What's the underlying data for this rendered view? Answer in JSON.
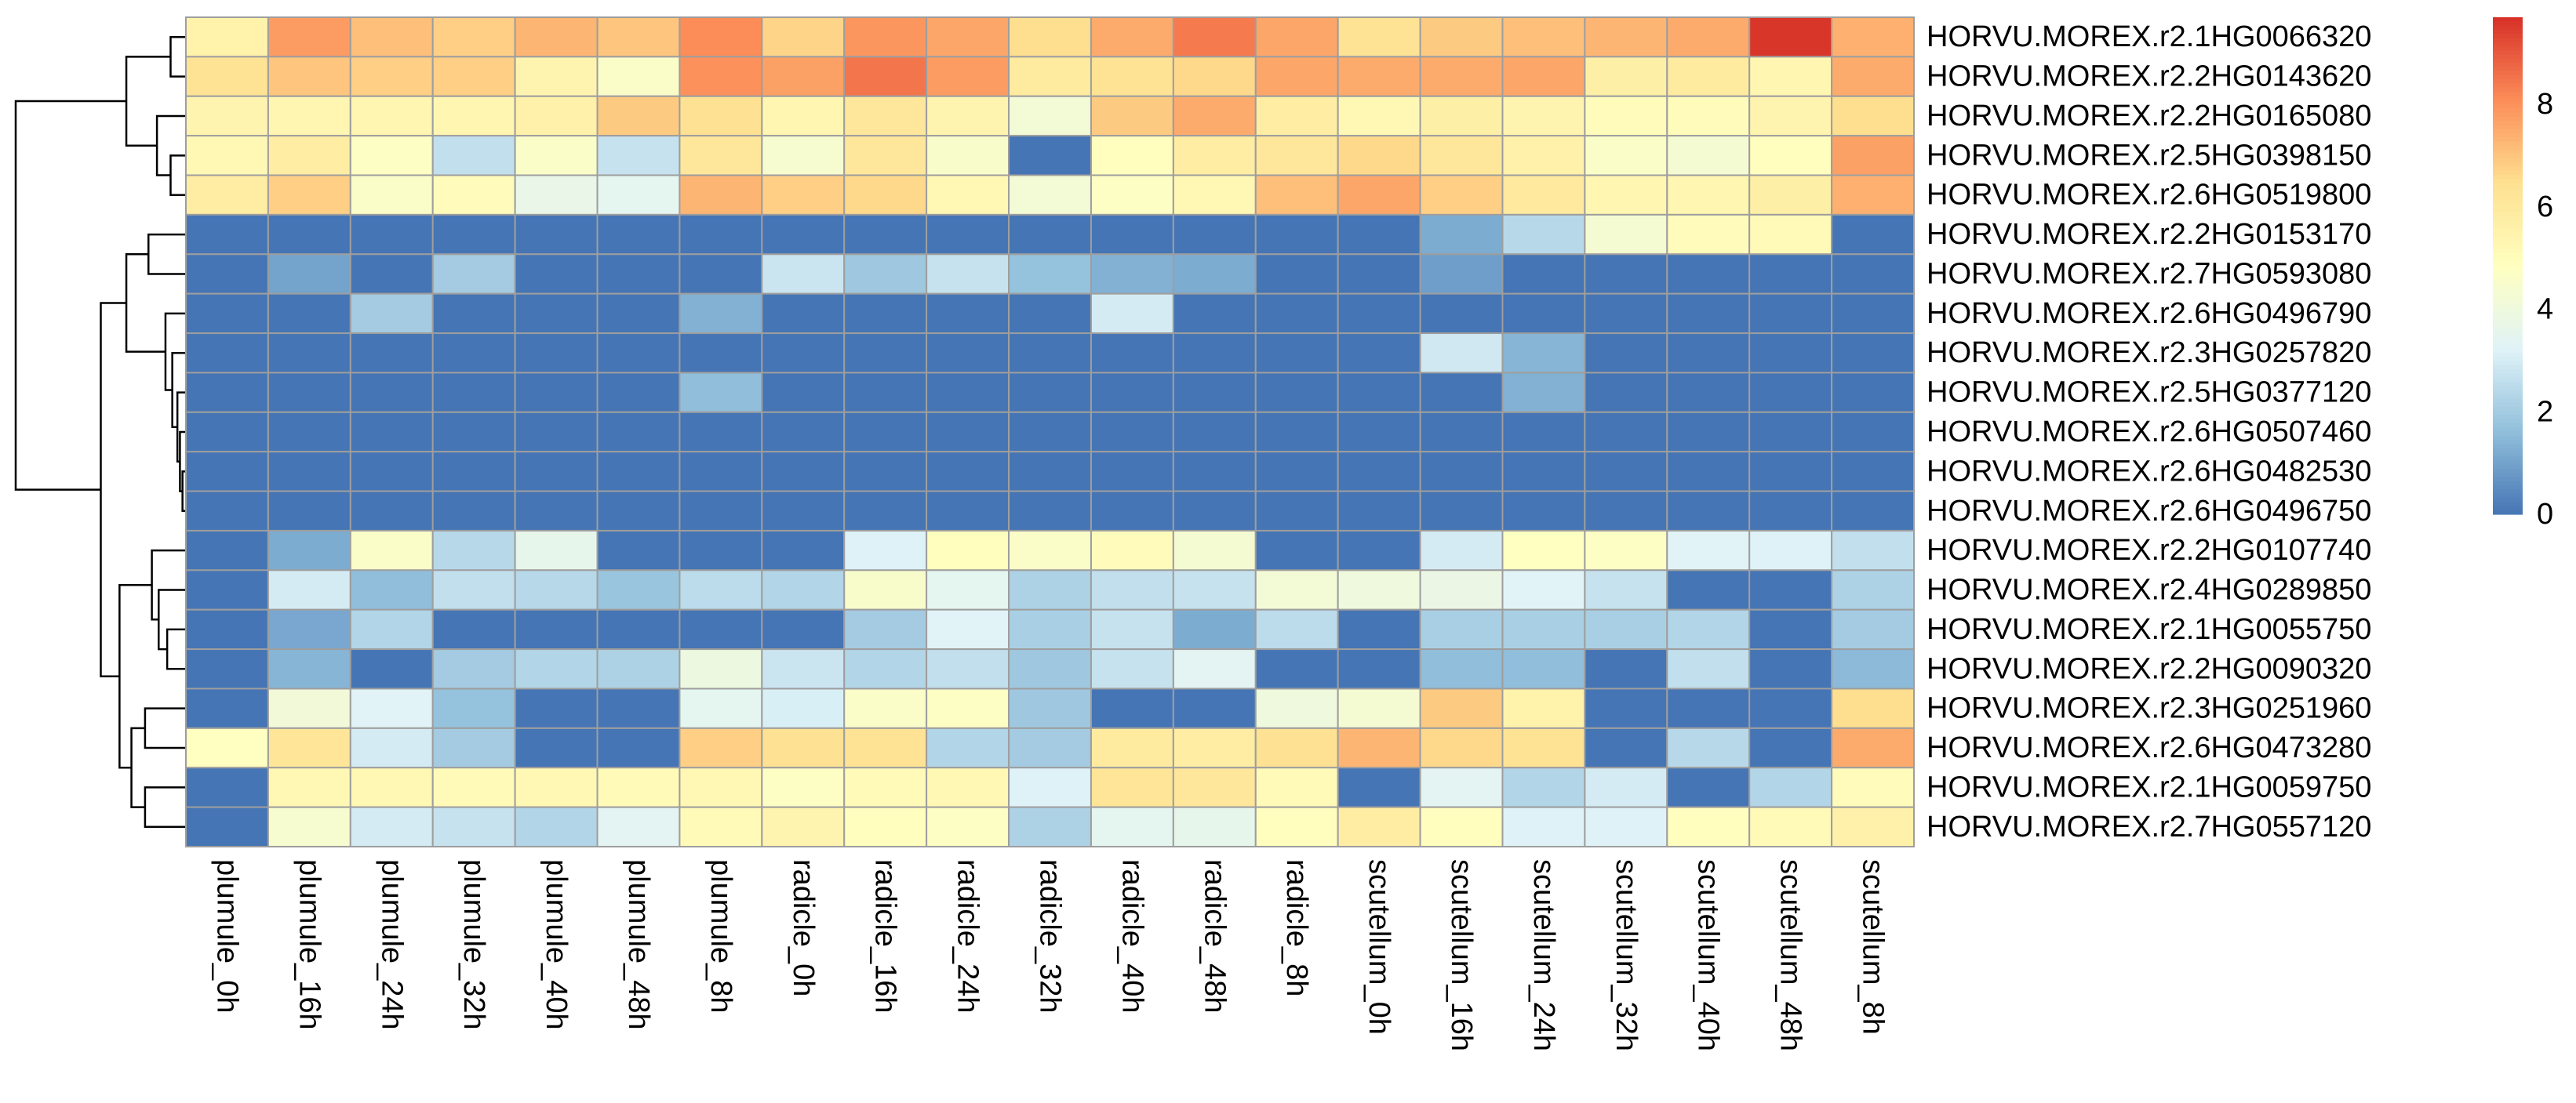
{
  "chart_data": {
    "type": "heatmap",
    "title": "",
    "xlabel": "",
    "ylabel": "",
    "columns": [
      "plumule_0h",
      "plumule_16h",
      "plumule_24h",
      "plumule_32h",
      "plumule_40h",
      "plumule_48h",
      "plumule_8h",
      "radicle_0h",
      "radicle_16h",
      "radicle_24h",
      "radicle_32h",
      "radicle_40h",
      "radicle_48h",
      "radicle_8h",
      "scutellum_0h",
      "scutellum_16h",
      "scutellum_24h",
      "scutellum_32h",
      "scutellum_40h",
      "scutellum_48h",
      "scutellum_8h"
    ],
    "rows": [
      "HORVU.MOREX.r2.1HG0066320",
      "HORVU.MOREX.r2.2HG0143620",
      "HORVU.MOREX.r2.2HG0165080",
      "HORVU.MOREX.r2.5HG0398150",
      "HORVU.MOREX.r2.6HG0519800",
      "HORVU.MOREX.r2.2HG0153170",
      "HORVU.MOREX.r2.7HG0593080",
      "HORVU.MOREX.r2.6HG0496790",
      "HORVU.MOREX.r2.3HG0257820",
      "HORVU.MOREX.r2.5HG0377120",
      "HORVU.MOREX.r2.6HG0507460",
      "HORVU.MOREX.r2.6HG0482530",
      "HORVU.MOREX.r2.6HG0496750",
      "HORVU.MOREX.r2.2HG0107740",
      "HORVU.MOREX.r2.4HG0289850",
      "HORVU.MOREX.r2.1HG0055750",
      "HORVU.MOREX.r2.2HG0090320",
      "HORVU.MOREX.r2.3HG0251960",
      "HORVU.MOREX.r2.6HG0473280",
      "HORVU.MOREX.r2.1HG0059750",
      "HORVU.MOREX.r2.7HG0557120"
    ],
    "values": [
      [
        5.5,
        7.8,
        7.1,
        6.8,
        7.3,
        7.0,
        8.1,
        6.7,
        7.9,
        7.6,
        6.5,
        7.5,
        8.4,
        7.6,
        6.3,
        6.9,
        7.1,
        7.3,
        7.5,
        9.6,
        7.4
      ],
      [
        6.3,
        7.0,
        6.8,
        6.8,
        5.4,
        4.6,
        8.0,
        7.7,
        8.5,
        7.8,
        5.9,
        6.3,
        6.6,
        7.6,
        7.5,
        7.5,
        7.6,
        5.7,
        5.9,
        5.3,
        7.5
      ],
      [
        5.4,
        5.3,
        5.3,
        5.3,
        5.6,
        6.9,
        6.4,
        5.3,
        6.1,
        5.4,
        4.2,
        6.9,
        7.5,
        5.8,
        5.2,
        5.7,
        5.4,
        5.0,
        5.0,
        5.4,
        6.5
      ],
      [
        5.2,
        5.8,
        4.7,
        2.6,
        4.6,
        2.7,
        6.1,
        4.4,
        6.1,
        4.5,
        0.0,
        4.9,
        5.8,
        6.1,
        6.6,
        6.1,
        5.6,
        4.6,
        4.3,
        4.9,
        7.7
      ],
      [
        5.8,
        6.8,
        4.6,
        5.0,
        3.7,
        3.5,
        7.3,
        6.8,
        6.6,
        5.2,
        4.2,
        4.7,
        5.2,
        7.1,
        7.6,
        6.8,
        6.0,
        5.3,
        5.3,
        5.7,
        7.4
      ],
      [
        0.0,
        0.0,
        0.0,
        0.0,
        0.0,
        0.0,
        0.0,
        0.0,
        0.0,
        0.0,
        0.0,
        0.0,
        0.0,
        0.0,
        0.0,
        1.2,
        2.4,
        4.3,
        5.0,
        5.1,
        0.0
      ],
      [
        0.0,
        1.0,
        0.0,
        2.0,
        0.0,
        0.0,
        0.0,
        2.8,
        1.9,
        2.7,
        1.7,
        1.3,
        1.2,
        0.0,
        0.0,
        0.9,
        0.0,
        0.0,
        0.0,
        0.0,
        0.0
      ],
      [
        0.0,
        0.0,
        2.0,
        0.0,
        0.0,
        0.0,
        1.3,
        0.0,
        0.0,
        0.0,
        0.0,
        3.0,
        0.0,
        0.0,
        0.0,
        0.0,
        0.0,
        0.0,
        0.0,
        0.0,
        0.0
      ],
      [
        0.0,
        0.0,
        0.0,
        0.0,
        0.0,
        0.0,
        0.0,
        0.0,
        0.0,
        0.0,
        0.0,
        0.0,
        0.0,
        0.0,
        0.0,
        2.9,
        1.4,
        0.0,
        0.0,
        0.0,
        0.0
      ],
      [
        0.0,
        0.0,
        0.0,
        0.0,
        0.0,
        0.0,
        1.6,
        0.0,
        0.0,
        0.0,
        0.0,
        0.0,
        0.0,
        0.0,
        0.0,
        0.0,
        1.3,
        0.0,
        0.0,
        0.0,
        0.0
      ],
      [
        0.0,
        0.0,
        0.0,
        0.0,
        0.0,
        0.0,
        0.0,
        0.0,
        0.0,
        0.0,
        0.0,
        0.0,
        0.0,
        0.0,
        0.0,
        0.0,
        0.0,
        0.0,
        0.0,
        0.0,
        0.0
      ],
      [
        0.0,
        0.0,
        0.0,
        0.0,
        0.0,
        0.0,
        0.0,
        0.0,
        0.0,
        0.0,
        0.0,
        0.0,
        0.0,
        0.0,
        0.0,
        0.0,
        0.0,
        0.0,
        0.0,
        0.0,
        0.0
      ],
      [
        0.0,
        0.0,
        0.0,
        0.0,
        0.0,
        0.0,
        0.0,
        0.0,
        0.0,
        0.0,
        0.0,
        0.0,
        0.0,
        0.0,
        0.0,
        0.0,
        0.0,
        0.0,
        0.0,
        0.0,
        0.0
      ],
      [
        0.0,
        1.2,
        4.6,
        2.4,
        3.6,
        0.0,
        0.0,
        0.0,
        3.2,
        4.9,
        4.6,
        5.0,
        4.3,
        0.0,
        0.0,
        3.0,
        4.8,
        4.7,
        3.3,
        3.2,
        2.6
      ],
      [
        0.0,
        3.0,
        1.6,
        2.6,
        2.4,
        1.8,
        2.5,
        2.3,
        4.5,
        3.5,
        2.2,
        2.6,
        2.7,
        4.2,
        4.0,
        3.8,
        3.3,
        2.7,
        0.0,
        0.0,
        2.2
      ],
      [
        0.0,
        1.1,
        2.3,
        0.0,
        0.0,
        0.0,
        0.0,
        0.0,
        2.0,
        3.3,
        2.1,
        2.7,
        1.2,
        2.5,
        0.0,
        2.1,
        2.1,
        2.1,
        2.3,
        0.0,
        2.0
      ],
      [
        0.0,
        1.4,
        0.0,
        2.0,
        2.3,
        2.2,
        3.9,
        2.8,
        2.3,
        2.6,
        1.9,
        2.7,
        3.4,
        0.0,
        0.0,
        1.6,
        1.6,
        0.0,
        2.6,
        0.0,
        1.5
      ],
      [
        0.0,
        4.1,
        3.3,
        1.7,
        0.0,
        0.0,
        3.5,
        3.1,
        4.6,
        4.7,
        1.9,
        0.0,
        0.0,
        4.0,
        4.3,
        6.9,
        5.5,
        0.0,
        0.0,
        0.0,
        6.5
      ],
      [
        4.8,
        6.2,
        3.0,
        2.0,
        0.0,
        0.0,
        6.8,
        6.4,
        6.3,
        2.3,
        2.0,
        5.9,
        5.8,
        6.4,
        7.3,
        6.6,
        6.3,
        0.0,
        2.4,
        0.0,
        7.5
      ],
      [
        0.0,
        5.2,
        5.2,
        5.1,
        5.2,
        5.1,
        5.2,
        4.7,
        5.1,
        5.2,
        3.2,
        6.2,
        6.1,
        5.1,
        0.0,
        3.4,
        2.3,
        3.0,
        0.0,
        2.3,
        5.0
      ],
      [
        0.0,
        4.4,
        3.0,
        2.7,
        2.3,
        3.4,
        5.1,
        5.4,
        4.9,
        4.7,
        2.2,
        3.5,
        3.6,
        4.9,
        5.8,
        4.9,
        3.2,
        3.2,
        4.9,
        5.1,
        5.6
      ]
    ],
    "colorbar": {
      "min": 0,
      "max": 9.7,
      "ticks": [
        0,
        2,
        4,
        6,
        8
      ],
      "colors": [
        "#4575B4",
        "#91BFDB",
        "#E0F3F8",
        "#FFFFBF",
        "#FEE090",
        "#FC8D59",
        "#D73027"
      ]
    },
    "row_dendrogram": [
      {
        "a": 0,
        "b": 1,
        "h": 0.9
      },
      {
        "a": 3,
        "b": 4,
        "h": 0.9
      },
      {
        "a": 2,
        "b": "n1",
        "h": 1.7
      },
      {
        "a": "n0",
        "b": "n2",
        "h": 3.5
      },
      {
        "a": 11,
        "b": 12,
        "h": 0.2
      },
      {
        "a": 10,
        "b": "n4",
        "h": 0.35
      },
      {
        "a": 9,
        "b": "n5",
        "h": 0.5
      },
      {
        "a": 8,
        "b": "n6",
        "h": 0.8
      },
      {
        "a": 7,
        "b": "n7",
        "h": 1.2
      },
      {
        "a": 5,
        "b": 6,
        "h": 2.2
      },
      {
        "a": "n9",
        "b": "n8",
        "h": 3.5
      },
      {
        "a": 15,
        "b": 16,
        "h": 1.1
      },
      {
        "a": 14,
        "b": "n11",
        "h": 1.6
      },
      {
        "a": 13,
        "b": "n12",
        "h": 2.0
      },
      {
        "a": 17,
        "b": 18,
        "h": 2.4
      },
      {
        "a": 19,
        "b": 20,
        "h": 2.4
      },
      {
        "a": "n14",
        "b": "n15",
        "h": 3.2
      },
      {
        "a": "n13",
        "b": "n16",
        "h": 3.9
      },
      {
        "a": "n10",
        "b": "n17",
        "h": 5.0
      },
      {
        "a": "n3",
        "b": "n18",
        "h": 10.0
      }
    ]
  }
}
